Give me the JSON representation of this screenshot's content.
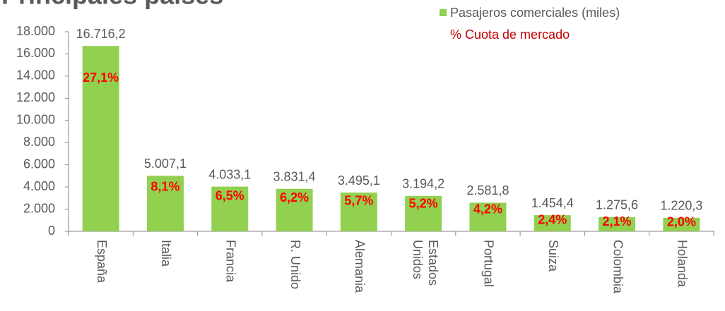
{
  "chart_data": {
    "type": "bar",
    "title": "Principales países",
    "categories": [
      "España",
      "Italia",
      "Francia",
      "R. Unido",
      "Alemania",
      "Estados Unidos",
      "Portugal",
      "Suiza",
      "Colombia",
      "Holanda"
    ],
    "series": [
      {
        "name": "Pasajeros comerciales (miles)",
        "color": "#92d050",
        "values": [
          16716.2,
          5007.1,
          4033.1,
          3831.4,
          3495.1,
          3194.2,
          2581.8,
          1454.4,
          1275.6,
          1220.3
        ],
        "value_labels": [
          "16.716,2",
          "5.007,1",
          "4.033,1",
          "3.831,4",
          "3.495,1",
          "3.194,2",
          "2.581,8",
          "1.454,4",
          "1.275,6",
          "1.220,3"
        ]
      },
      {
        "name": "% Cuota de mercado",
        "color": "#ff0000",
        "legend_color": "#c00000",
        "values": [
          27.1,
          8.1,
          6.5,
          6.2,
          5.7,
          5.2,
          4.2,
          2.4,
          2.1,
          2.0
        ],
        "value_labels": [
          "27,1%",
          "8,1%",
          "6,5%",
          "6,2%",
          "5,7%",
          "5,2%",
          "4,2%",
          "2,4%",
          "2,1%",
          "2,0%"
        ]
      }
    ],
    "ylim": [
      0,
      18000
    ],
    "yticks": [
      0,
      {
        "value": 2000,
        "label": "2.000"
      },
      {
        "value": 4000,
        "label": "4.000"
      },
      {
        "value": 6000,
        "label": "6.000"
      },
      {
        "value": 8000,
        "label": "8.000"
      },
      {
        "value": 10000,
        "label": "10.000"
      },
      {
        "value": 12000,
        "label": "12.000"
      },
      {
        "value": 14000,
        "label": "14.000"
      },
      {
        "value": 16000,
        "label": "16.000"
      },
      {
        "value": 18000,
        "label": "18.000"
      }
    ],
    "grid": false,
    "legend": "top-right"
  }
}
